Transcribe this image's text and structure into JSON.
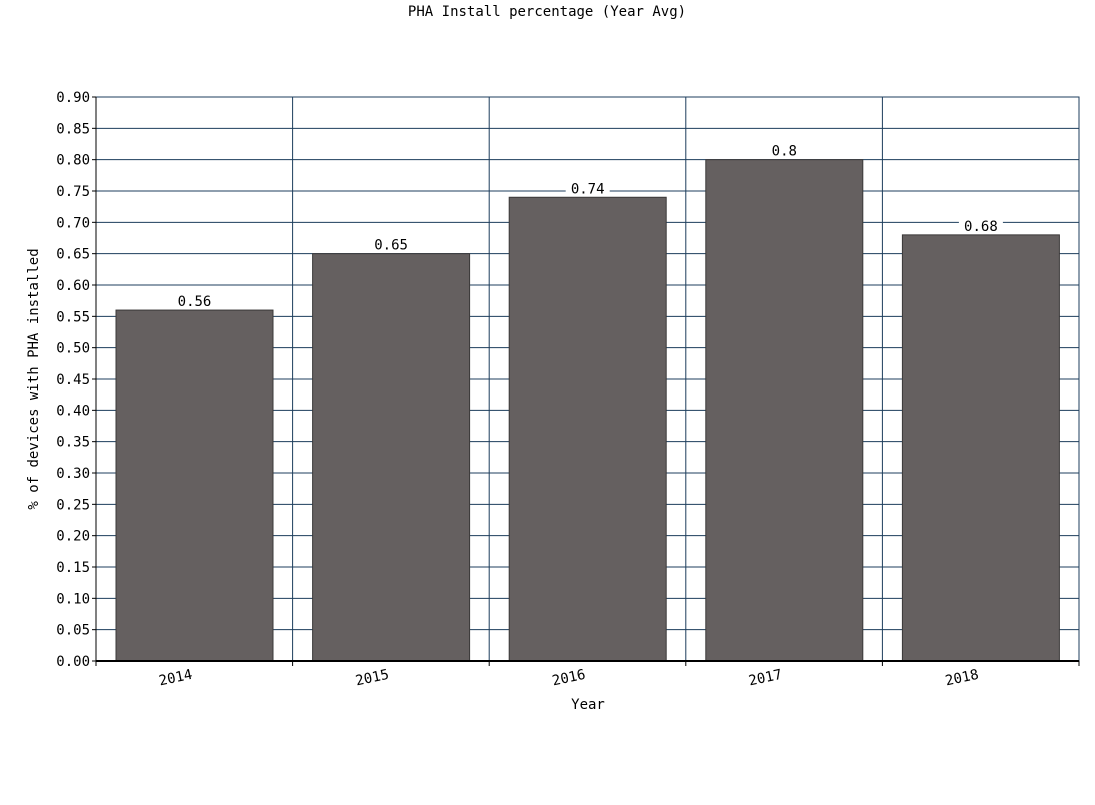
{
  "chart_data": {
    "type": "bar",
    "title": "PHA Install percentage (Year Avg)",
    "xlabel": "Year",
    "ylabel": "% of devices with PHA installed",
    "categories": [
      "2014",
      "2015",
      "2016",
      "2017",
      "2018"
    ],
    "values": [
      0.56,
      0.65,
      0.74,
      0.8,
      0.68
    ],
    "value_labels": [
      "0.56",
      "0.65",
      "0.74",
      "0.8",
      "0.68"
    ],
    "ylim": [
      0,
      0.9
    ],
    "yticks": [
      "0.00",
      "0.05",
      "0.10",
      "0.15",
      "0.20",
      "0.25",
      "0.30",
      "0.35",
      "0.40",
      "0.45",
      "0.50",
      "0.55",
      "0.60",
      "0.65",
      "0.70",
      "0.75",
      "0.80",
      "0.85",
      "0.90"
    ],
    "grid": true,
    "colors": {
      "bar": "#656060",
      "grid": "#1c3d5c",
      "axis": "#000000",
      "text": "#000000"
    }
  }
}
